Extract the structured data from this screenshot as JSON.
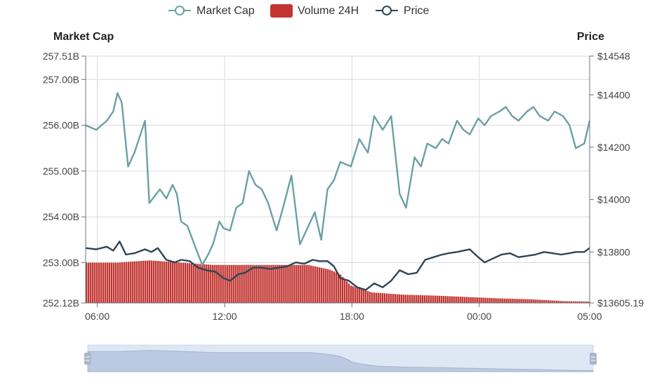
{
  "chart_data": {
    "type": "line",
    "legend": [
      {
        "name": "Market Cap",
        "color": "#6aa0a6",
        "symbol": "line-circle"
      },
      {
        "name": "Volume 24H",
        "color": "#c23531",
        "symbol": "rect"
      },
      {
        "name": "Price",
        "color": "#2f4554",
        "symbol": "line-circle"
      }
    ],
    "y_left": {
      "title": "Market Cap",
      "ticks": [
        "257.51B",
        "257.00B",
        "256.00B",
        "255.00B",
        "254.00B",
        "253.00B",
        "252.12B"
      ],
      "tick_values": [
        257.51,
        257.0,
        256.0,
        255.0,
        254.0,
        253.0,
        252.12
      ],
      "range": [
        252.12,
        257.51
      ]
    },
    "y_right": {
      "title": "Price",
      "ticks": [
        "$14548",
        "$14400",
        "$14200",
        "$14000",
        "$13800",
        "$13605.19"
      ],
      "tick_values": [
        14548,
        14400,
        14200,
        14000,
        13800,
        13605.19
      ],
      "range": [
        13605.19,
        14548
      ]
    },
    "x_axis": {
      "ticks": [
        "06:00",
        "12:00",
        "18:00",
        "00:00",
        "05:00"
      ],
      "tick_hours": [
        0.55,
        6.55,
        12.55,
        18.55,
        23.75
      ],
      "range_hours": [
        0,
        23.75
      ]
    },
    "series": [
      {
        "name": "Market Cap",
        "axis": "left",
        "unit": "B",
        "x": [
          0,
          0.5,
          1.0,
          1.3,
          1.5,
          1.7,
          2.0,
          2.3,
          2.8,
          3.0,
          3.5,
          3.8,
          4.1,
          4.3,
          4.5,
          4.8,
          5.2,
          5.5,
          5.8,
          6.0,
          6.3,
          6.5,
          6.8,
          7.1,
          7.4,
          7.7,
          8.0,
          8.3,
          8.6,
          9.0,
          9.3,
          9.7,
          10.1,
          10.5,
          10.8,
          11.1,
          11.4,
          11.7,
          12.0,
          12.5,
          12.9,
          13.3,
          13.6,
          14.0,
          14.4,
          14.8,
          15.1,
          15.5,
          15.8,
          16.1,
          16.5,
          16.8,
          17.1,
          17.5,
          17.8,
          18.1,
          18.5,
          18.8,
          19.1,
          19.5,
          19.8,
          20.1,
          20.4,
          20.8,
          21.1,
          21.4,
          21.8,
          22.1,
          22.5,
          22.8,
          23.1,
          23.5,
          23.75
        ],
        "values": [
          256.0,
          255.9,
          256.1,
          256.3,
          256.7,
          256.5,
          255.1,
          255.4,
          256.1,
          254.3,
          254.6,
          254.4,
          254.7,
          254.5,
          253.9,
          253.8,
          253.3,
          252.95,
          253.2,
          253.4,
          253.9,
          253.75,
          253.7,
          254.2,
          254.3,
          255.0,
          254.7,
          254.6,
          254.3,
          253.7,
          254.2,
          254.9,
          253.4,
          253.8,
          254.1,
          253.5,
          254.6,
          254.8,
          255.2,
          255.1,
          255.7,
          255.4,
          256.2,
          255.9,
          256.2,
          254.5,
          254.2,
          255.3,
          255.1,
          255.6,
          255.5,
          255.7,
          255.6,
          256.1,
          255.9,
          255.8,
          256.15,
          256.0,
          256.2,
          256.3,
          256.4,
          256.2,
          256.1,
          256.3,
          256.4,
          256.2,
          256.1,
          256.3,
          256.2,
          256.0,
          255.5,
          255.6,
          256.1
        ]
      },
      {
        "name": "Price",
        "axis": "right",
        "unit": "$",
        "x": [
          0,
          0.5,
          1.0,
          1.3,
          1.6,
          1.9,
          2.3,
          2.8,
          3.1,
          3.4,
          3.8,
          4.2,
          4.5,
          4.9,
          5.3,
          5.7,
          6.1,
          6.5,
          6.8,
          7.2,
          7.5,
          7.9,
          8.3,
          8.7,
          9.1,
          9.5,
          9.9,
          10.3,
          10.7,
          11.0,
          11.4,
          11.7,
          12.0,
          12.4,
          12.8,
          13.2,
          13.6,
          14.0,
          14.4,
          14.8,
          15.2,
          15.6,
          16.0,
          16.4,
          16.8,
          17.1,
          17.5,
          17.8,
          18.1,
          18.5,
          18.8,
          19.2,
          19.6,
          20.0,
          20.4,
          20.8,
          21.2,
          21.6,
          22.0,
          22.4,
          22.8,
          23.1,
          23.5,
          23.75
        ],
        "values": [
          13815,
          13810,
          13820,
          13805,
          13840,
          13790,
          13795,
          13810,
          13800,
          13815,
          13770,
          13760,
          13770,
          13765,
          13740,
          13730,
          13725,
          13700,
          13690,
          13715,
          13720,
          13740,
          13740,
          13735,
          13740,
          13745,
          13760,
          13755,
          13770,
          13765,
          13765,
          13745,
          13700,
          13690,
          13665,
          13655,
          13680,
          13665,
          13690,
          13730,
          13715,
          13720,
          13770,
          13780,
          13790,
          13795,
          13800,
          13805,
          13810,
          13780,
          13760,
          13775,
          13790,
          13795,
          13780,
          13785,
          13790,
          13800,
          13795,
          13790,
          13795,
          13800,
          13800,
          13815
        ]
      },
      {
        "name": "Volume 24H",
        "axis": "left",
        "unit": "B",
        "x": [
          0,
          1.5,
          3.0,
          4.5,
          6.0,
          7.5,
          9.0,
          10.5,
          11.5,
          12.0,
          12.5,
          13.5,
          15.0,
          16.5,
          18.0,
          19.5,
          21.0,
          22.5,
          23.75
        ],
        "values": [
          253.0,
          253.0,
          253.05,
          253.0,
          252.95,
          252.95,
          252.95,
          252.95,
          252.85,
          252.75,
          252.5,
          252.35,
          252.3,
          252.28,
          252.25,
          252.22,
          252.2,
          252.16,
          252.15
        ]
      }
    ],
    "dataZoom": {
      "start_percent": 0,
      "end_percent": 100
    }
  }
}
